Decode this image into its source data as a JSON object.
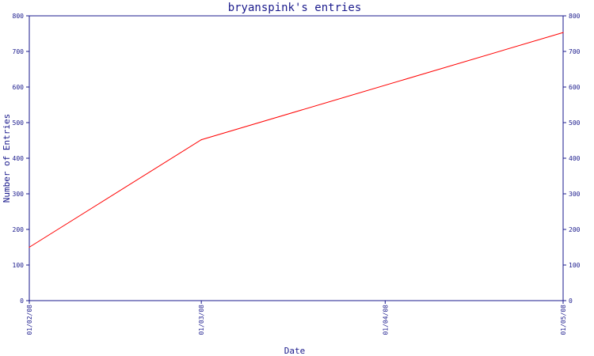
{
  "chart_data": {
    "type": "line",
    "title": "bryanspink's entries",
    "xlabel": "Date",
    "ylabel": "Number of Entries",
    "x_ticks": [
      "01/02/08",
      "01/03/08",
      "01/04/08",
      "01/05/08"
    ],
    "y_ticks": [
      0,
      100,
      200,
      300,
      400,
      500,
      600,
      700,
      800
    ],
    "ylim": [
      0,
      800
    ],
    "grid": false,
    "colors": {
      "axis": "#1a1a8c",
      "line": "#ff0000"
    },
    "series": [
      {
        "x": [
          "01/02/08",
          "01/03/08",
          "01/05/08"
        ],
        "values": [
          150,
          452,
          753
        ]
      }
    ]
  }
}
